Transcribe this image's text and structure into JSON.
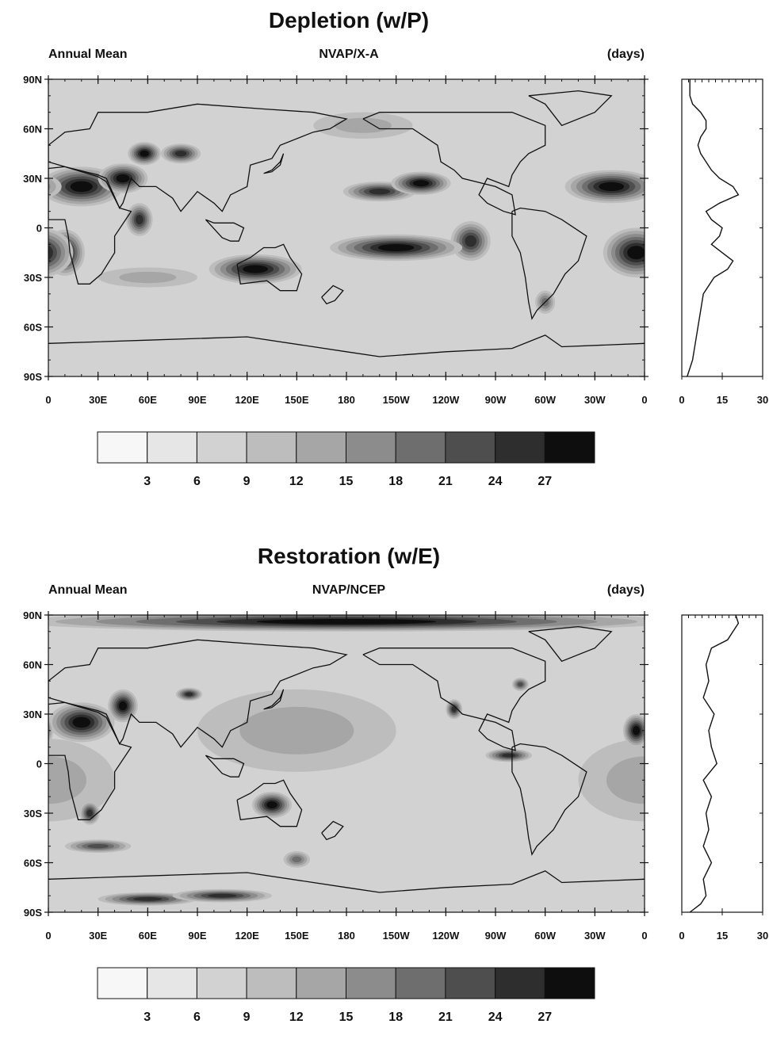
{
  "panels": [
    {
      "title": "Depletion (w/P)",
      "left_label": "Annual Mean",
      "center_label": "NVAP/X-A",
      "right_label": "(days)",
      "profile_lat": [
        -90,
        -80,
        -70,
        -60,
        -50,
        -40,
        -30,
        -25,
        -20,
        -15,
        -10,
        -5,
        0,
        5,
        10,
        15,
        20,
        25,
        30,
        35,
        40,
        45,
        50,
        55,
        60,
        65,
        70,
        75,
        80,
        85,
        90
      ],
      "profile_days": [
        2,
        4,
        5,
        6,
        7,
        8,
        12,
        17,
        19,
        15,
        11,
        14,
        15,
        11,
        9,
        14,
        21,
        19,
        14,
        11,
        9,
        7,
        6,
        7,
        9,
        9,
        7,
        4,
        3,
        3,
        3
      ],
      "blobs": [
        {
          "lon": 20,
          "lat": 25,
          "val": 28,
          "rlon": 25,
          "rlat": 12
        },
        {
          "lon": 10,
          "lat": -15,
          "val": 28,
          "rlon": 12,
          "rlat": 14
        },
        {
          "lon": 45,
          "lat": 30,
          "val": 28,
          "rlon": 15,
          "rlat": 9
        },
        {
          "lon": 55,
          "lat": 5,
          "val": 24,
          "rlon": 8,
          "rlat": 10
        },
        {
          "lon": 58,
          "lat": 45,
          "val": 27,
          "rlon": 10,
          "rlat": 7
        },
        {
          "lon": 80,
          "lat": 45,
          "val": 26,
          "rlon": 12,
          "rlat": 6
        },
        {
          "lon": 125,
          "lat": -25,
          "val": 28,
          "rlon": 28,
          "rlat": 9
        },
        {
          "lon": 200,
          "lat": 22,
          "val": 24,
          "rlon": 22,
          "rlat": 6
        },
        {
          "lon": 225,
          "lat": 27,
          "val": 28,
          "rlon": 18,
          "rlat": 7
        },
        {
          "lon": 210,
          "lat": -12,
          "val": 28,
          "rlon": 40,
          "rlat": 8
        },
        {
          "lon": 255,
          "lat": -8,
          "val": 24,
          "rlon": 12,
          "rlat": 12
        },
        {
          "lon": 340,
          "lat": 25,
          "val": 28,
          "rlon": 28,
          "rlat": 10
        },
        {
          "lon": 355,
          "lat": -15,
          "val": 28,
          "rlon": 20,
          "rlat": 15
        },
        {
          "lon": 300,
          "lat": -45,
          "val": 18,
          "rlon": 6,
          "rlat": 7
        },
        {
          "lon": 190,
          "lat": 62,
          "val": 14,
          "rlon": 30,
          "rlat": 8
        },
        {
          "lon": 60,
          "lat": -30,
          "val": 12,
          "rlon": 30,
          "rlat": 6
        }
      ],
      "base": 7
    },
    {
      "title": "Restoration (w/E)",
      "left_label": "Annual Mean",
      "center_label": "NVAP/NCEP",
      "right_label": "(days)",
      "profile_lat": [
        -90,
        -85,
        -80,
        -70,
        -60,
        -50,
        -40,
        -30,
        -20,
        -10,
        0,
        10,
        20,
        30,
        40,
        50,
        60,
        70,
        75,
        80,
        85,
        90
      ],
      "profile_days": [
        3,
        7,
        9,
        8,
        11,
        8,
        10,
        9,
        11,
        8,
        13,
        11,
        10,
        12,
        8,
        10,
        9,
        11,
        17,
        19,
        21,
        20
      ],
      "blobs": [
        {
          "lon": 180,
          "lat": 86,
          "val": 28,
          "rlon": 200,
          "rlat": 6
        },
        {
          "lon": 20,
          "lat": 25,
          "val": 28,
          "rlon": 20,
          "rlat": 12
        },
        {
          "lon": 25,
          "lat": -30,
          "val": 26,
          "rlon": 6,
          "rlat": 7
        },
        {
          "lon": 45,
          "lat": 35,
          "val": 27,
          "rlon": 9,
          "rlat": 10
        },
        {
          "lon": 85,
          "lat": 42,
          "val": 26,
          "rlon": 8,
          "rlat": 4
        },
        {
          "lon": 135,
          "lat": -25,
          "val": 28,
          "rlon": 12,
          "rlat": 8
        },
        {
          "lon": 278,
          "lat": 5,
          "val": 25,
          "rlon": 14,
          "rlat": 4
        },
        {
          "lon": 245,
          "lat": 33,
          "val": 24,
          "rlon": 5,
          "rlat": 6
        },
        {
          "lon": 355,
          "lat": 20,
          "val": 28,
          "rlon": 8,
          "rlat": 10
        },
        {
          "lon": 30,
          "lat": -50,
          "val": 22,
          "rlon": 20,
          "rlat": 4
        },
        {
          "lon": 60,
          "lat": -82,
          "val": 26,
          "rlon": 30,
          "rlat": 4
        },
        {
          "lon": 105,
          "lat": -80,
          "val": 26,
          "rlon": 30,
          "rlat": 4
        },
        {
          "lon": 150,
          "lat": -58,
          "val": 20,
          "rlon": 8,
          "rlat": 5
        },
        {
          "lon": 285,
          "lat": 48,
          "val": 22,
          "rlon": 5,
          "rlat": 4
        },
        {
          "lon": 0,
          "lat": -10,
          "val": 14,
          "rlon": 40,
          "rlat": 25
        },
        {
          "lon": 150,
          "lat": 20,
          "val": 12,
          "rlon": 60,
          "rlat": 25
        }
      ],
      "base": 7
    }
  ],
  "axes": {
    "lat_ticks": [
      "90N",
      "60N",
      "30N",
      "0",
      "30S",
      "60S",
      "90S"
    ],
    "lon_ticks": [
      "0",
      "30E",
      "60E",
      "90E",
      "120E",
      "150E",
      "180",
      "150W",
      "120W",
      "90W",
      "60W",
      "30W",
      "0"
    ],
    "profile_ticks": [
      "0",
      "15",
      "30"
    ]
  },
  "colorbar": {
    "labels": [
      "3",
      "6",
      "9",
      "12",
      "15",
      "18",
      "21",
      "24",
      "27"
    ],
    "colors": [
      "#f7f7f7",
      "#e6e6e6",
      "#d2d2d2",
      "#bdbdbd",
      "#a6a6a6",
      "#8c8c8c",
      "#6e6e6e",
      "#4e4e4e",
      "#2e2e2e",
      "#0e0e0e"
    ]
  }
}
